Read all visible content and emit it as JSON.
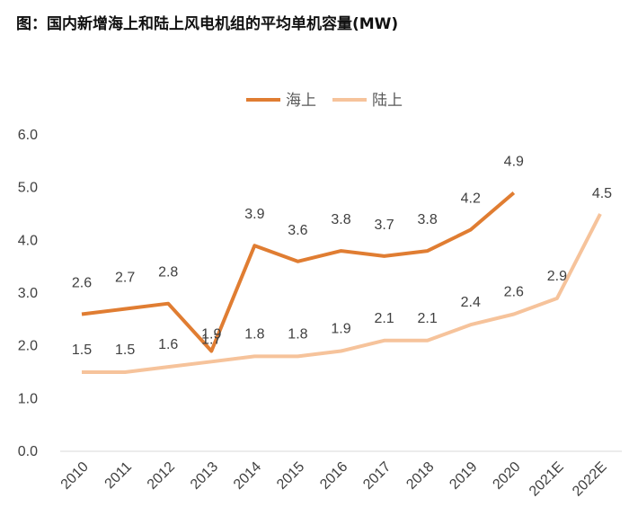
{
  "title": "图：国内新增海上和陆上风电机组的平均单机容量(MW)",
  "chart_data": {
    "type": "line",
    "categories": [
      "2010",
      "2011",
      "2012",
      "2013",
      "2014",
      "2015",
      "2016",
      "2017",
      "2018",
      "2019",
      "2020",
      "2021E",
      "2022E"
    ],
    "series": [
      {
        "name": "海上",
        "color": "#E07D32",
        "values": [
          2.6,
          2.7,
          2.8,
          1.9,
          3.9,
          3.6,
          3.8,
          3.7,
          3.8,
          4.2,
          4.9,
          null,
          null
        ]
      },
      {
        "name": "陆上",
        "color": "#F6C39B",
        "values": [
          1.5,
          1.5,
          1.6,
          1.7,
          1.8,
          1.8,
          1.9,
          2.1,
          2.1,
          2.4,
          2.6,
          2.9,
          4.5
        ]
      }
    ],
    "ylim": [
      0,
      6
    ],
    "yticks": [
      "0.0",
      "1.0",
      "2.0",
      "3.0",
      "4.0",
      "5.0",
      "6.0"
    ],
    "legend_position": "top-center",
    "grid": false
  }
}
